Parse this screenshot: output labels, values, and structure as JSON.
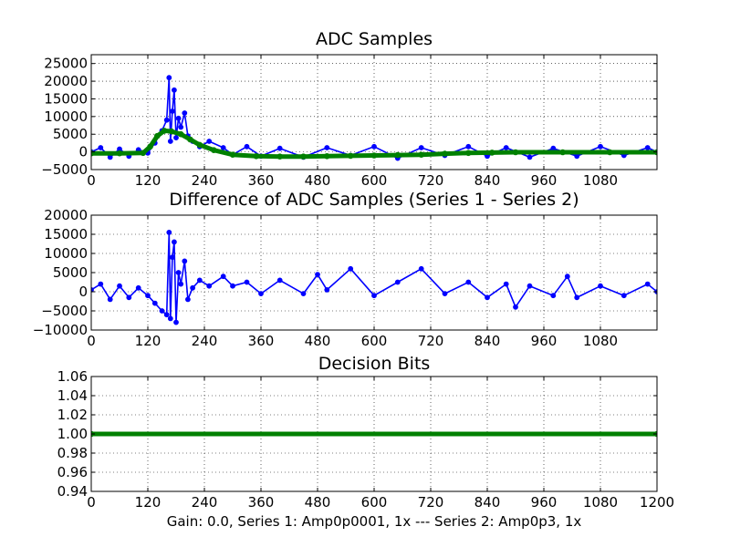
{
  "figure": {
    "xlabel": "Gain: 0.0, Series 1: Amp0p0001, 1x --- Series 2: Amp0p3, 1x",
    "colors": {
      "series1": "#0000ff",
      "series2": "#008000",
      "grid": "#000000"
    }
  },
  "chart_data": [
    {
      "type": "line",
      "title": "ADC Samples",
      "xlim": [
        0,
        1200
      ],
      "ylim": [
        -5000,
        27500
      ],
      "xticks": [
        0,
        120,
        240,
        360,
        480,
        600,
        720,
        840,
        960,
        1080
      ],
      "yticks": [
        -5000,
        0,
        5000,
        10000,
        15000,
        20000,
        25000
      ],
      "grid": true,
      "series": [
        {
          "color": "#0000ff",
          "marker": "circle",
          "points": [
            [
              0,
              0
            ],
            [
              20,
              1200
            ],
            [
              40,
              -1500
            ],
            [
              60,
              800
            ],
            [
              80,
              -1200
            ],
            [
              100,
              600
            ],
            [
              120,
              -300
            ],
            [
              135,
              2500
            ],
            [
              150,
              6000
            ],
            [
              160,
              9000
            ],
            [
              165,
              21000
            ],
            [
              168,
              3000
            ],
            [
              172,
              11500
            ],
            [
              176,
              17500
            ],
            [
              180,
              4000
            ],
            [
              185,
              9500
            ],
            [
              190,
              7000
            ],
            [
              198,
              11000
            ],
            [
              205,
              4500
            ],
            [
              215,
              3000
            ],
            [
              230,
              1500
            ],
            [
              250,
              3000
            ],
            [
              280,
              1200
            ],
            [
              300,
              -800
            ],
            [
              330,
              1500
            ],
            [
              360,
              -1200
            ],
            [
              400,
              1000
            ],
            [
              450,
              -1500
            ],
            [
              500,
              1200
            ],
            [
              550,
              -1000
            ],
            [
              600,
              1500
            ],
            [
              650,
              -1800
            ],
            [
              700,
              1200
            ],
            [
              750,
              -1000
            ],
            [
              800,
              1500
            ],
            [
              840,
              -1200
            ],
            [
              880,
              1200
            ],
            [
              930,
              -1500
            ],
            [
              980,
              1000
            ],
            [
              1030,
              -1200
            ],
            [
              1080,
              1500
            ],
            [
              1130,
              -1000
            ],
            [
              1180,
              1200
            ],
            [
              1200,
              0
            ]
          ]
        },
        {
          "color": "#008000",
          "marker": "circle",
          "points": [
            [
              0,
              -400
            ],
            [
              60,
              -400
            ],
            [
              110,
              -300
            ],
            [
              125,
              1500
            ],
            [
              140,
              4500
            ],
            [
              155,
              6000
            ],
            [
              170,
              5800
            ],
            [
              190,
              5000
            ],
            [
              210,
              3500
            ],
            [
              230,
              2000
            ],
            [
              260,
              500
            ],
            [
              300,
              -800
            ],
            [
              350,
              -1200
            ],
            [
              400,
              -1300
            ],
            [
              450,
              -1300
            ],
            [
              500,
              -1200
            ],
            [
              550,
              -1100
            ],
            [
              600,
              -1000
            ],
            [
              650,
              -900
            ],
            [
              700,
              -800
            ],
            [
              750,
              -500
            ],
            [
              800,
              -300
            ],
            [
              850,
              -200
            ],
            [
              900,
              -100
            ],
            [
              1000,
              -100
            ],
            [
              1100,
              -100
            ],
            [
              1200,
              -100
            ]
          ]
        }
      ]
    },
    {
      "type": "line",
      "title": "Difference of ADC Samples (Series 1 - Series 2)",
      "xlim": [
        0,
        1200
      ],
      "ylim": [
        -10000,
        20000
      ],
      "xticks": [
        0,
        120,
        240,
        360,
        480,
        600,
        720,
        840,
        960,
        1080
      ],
      "yticks": [
        -10000,
        -5000,
        0,
        5000,
        10000,
        15000,
        20000
      ],
      "grid": true,
      "series": [
        {
          "color": "#0000ff",
          "marker": "circle",
          "points": [
            [
              0,
              500
            ],
            [
              20,
              2000
            ],
            [
              40,
              -2000
            ],
            [
              60,
              1500
            ],
            [
              80,
              -1500
            ],
            [
              100,
              1000
            ],
            [
              120,
              -1000
            ],
            [
              135,
              -3000
            ],
            [
              150,
              -5000
            ],
            [
              160,
              -6000
            ],
            [
              165,
              15500
            ],
            [
              168,
              -7000
            ],
            [
              172,
              9000
            ],
            [
              176,
              13000
            ],
            [
              180,
              -8000
            ],
            [
              185,
              5000
            ],
            [
              190,
              2000
            ],
            [
              198,
              8000
            ],
            [
              205,
              -2000
            ],
            [
              215,
              1000
            ],
            [
              230,
              3000
            ],
            [
              250,
              1500
            ],
            [
              280,
              4000
            ],
            [
              300,
              1500
            ],
            [
              330,
              2500
            ],
            [
              360,
              -500
            ],
            [
              400,
              3000
            ],
            [
              450,
              -500
            ],
            [
              480,
              4500
            ],
            [
              500,
              500
            ],
            [
              550,
              6000
            ],
            [
              600,
              -1000
            ],
            [
              650,
              2500
            ],
            [
              700,
              6000
            ],
            [
              750,
              -500
            ],
            [
              800,
              2500
            ],
            [
              840,
              -1500
            ],
            [
              880,
              2000
            ],
            [
              900,
              -4000
            ],
            [
              930,
              1500
            ],
            [
              980,
              -1000
            ],
            [
              1010,
              4000
            ],
            [
              1030,
              -1500
            ],
            [
              1080,
              1500
            ],
            [
              1130,
              -1000
            ],
            [
              1180,
              2000
            ],
            [
              1200,
              0
            ]
          ]
        }
      ]
    },
    {
      "type": "line",
      "title": "Decision Bits",
      "xlim": [
        0,
        1200
      ],
      "ylim": [
        0.94,
        1.06
      ],
      "xticks": [
        0,
        120,
        240,
        360,
        480,
        600,
        720,
        840,
        960,
        1080,
        1200
      ],
      "yticks": [
        0.94,
        0.96,
        0.98,
        1.0,
        1.02,
        1.04,
        1.06
      ],
      "ytick_labels": [
        "0.94",
        "0.96",
        "0.98",
        "1.00",
        "1.02",
        "1.04",
        "1.06"
      ],
      "grid": true,
      "series": [
        {
          "color": "#008000",
          "marker": "circle",
          "points": [
            [
              0,
              1.0
            ],
            [
              1200,
              1.0
            ]
          ]
        }
      ]
    }
  ]
}
